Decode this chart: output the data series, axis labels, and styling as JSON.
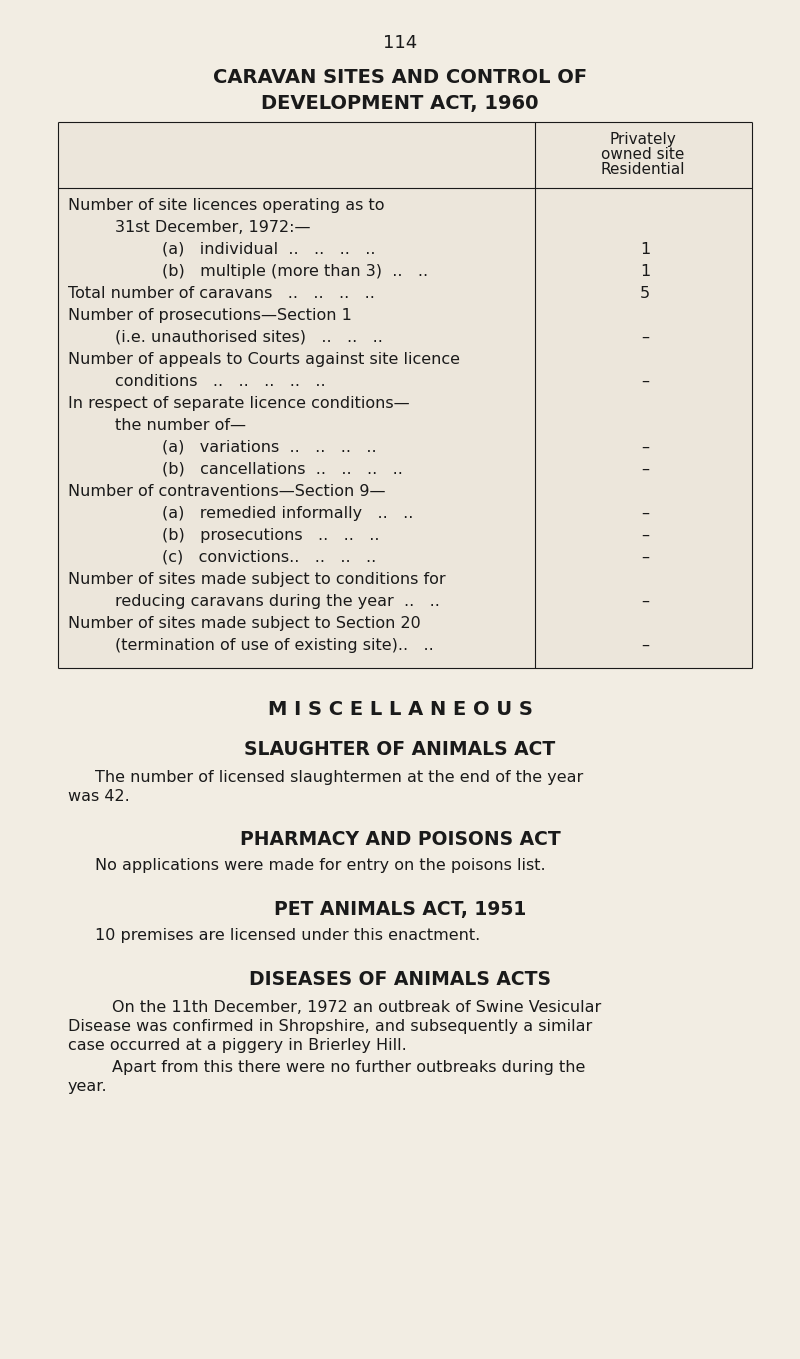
{
  "bg_color": "#f2ede3",
  "text_color": "#1a1a1a",
  "page_number": "114",
  "title_line1": "CARAVAN SITES AND CONTROL OF",
  "title_line2": "DEVELOPMENT ACT, 1960",
  "col_header_line1": "Privately",
  "col_header_line2": "owned site",
  "col_header_line3": "Residential",
  "table_rows": [
    {
      "indent": 0,
      "text": "Number of site licences operating as to",
      "value": "",
      "bold": false
    },
    {
      "indent": 1,
      "text": "31st December, 1972:—",
      "value": "",
      "bold": false
    },
    {
      "indent": 2,
      "text": "(a)   individual  ..   ..   ..   ..",
      "value": "1",
      "bold": false
    },
    {
      "indent": 2,
      "text": "(b)   multiple (more than 3)  ..   ..",
      "value": "1",
      "bold": false
    },
    {
      "indent": 0,
      "text": "Total number of caravans   ..   ..   ..   ..",
      "value": "5",
      "bold": false
    },
    {
      "indent": 0,
      "text": "Number of prosecutions—Section 1",
      "value": "",
      "bold": false
    },
    {
      "indent": 1,
      "text": "(i.e. unauthorised sites)   ..   ..   ..",
      "value": "–",
      "bold": false
    },
    {
      "indent": 0,
      "text": "Number of appeals to Courts against site licence",
      "value": "",
      "bold": false
    },
    {
      "indent": 1,
      "text": "conditions   ..   ..   ..   ..   ..",
      "value": "–",
      "bold": false
    },
    {
      "indent": 0,
      "text": "In respect of separate licence conditions—",
      "value": "",
      "bold": false
    },
    {
      "indent": 1,
      "text": "the number of—",
      "value": "",
      "bold": false
    },
    {
      "indent": 2,
      "text": "(a)   variations  ..   ..   ..   ..",
      "value": "–",
      "bold": false
    },
    {
      "indent": 2,
      "text": "(b)   cancellations  ..   ..   ..   ..",
      "value": "–",
      "bold": false
    },
    {
      "indent": 0,
      "text": "Number of contraventions—Section 9—",
      "value": "",
      "bold": false
    },
    {
      "indent": 2,
      "text": "(a)   remedied informally   ..   ..",
      "value": "–",
      "bold": false
    },
    {
      "indent": 2,
      "text": "(b)   prosecutions   ..   ..   ..",
      "value": "–",
      "bold": false
    },
    {
      "indent": 2,
      "text": "(c)   convictions..   ..   ..   ..",
      "value": "–",
      "bold": false
    },
    {
      "indent": 0,
      "text": "Number of sites made subject to conditions for",
      "value": "",
      "bold": false
    },
    {
      "indent": 1,
      "text": "reducing caravans during the year  ..   ..",
      "value": "–",
      "bold": false
    },
    {
      "indent": 0,
      "text": "Number of sites made subject to Section 20",
      "value": "",
      "bold": false
    },
    {
      "indent": 1,
      "text": "(termination of use of existing site)..   ..",
      "value": "–",
      "bold": false
    }
  ],
  "misc_title": "M I S C E L L A N E O U S",
  "slaughter_title": "SLAUGHTER OF ANIMALS ACT",
  "slaughter_body1": "The number of licensed slaughtermen at the end of the year",
  "slaughter_body2": "was 42.",
  "pharmacy_title": "PHARMACY AND POISONS ACT",
  "pharmacy_body": "No applications were made for entry on the poisons list.",
  "pet_title": "PET ANIMALS ACT, 1951",
  "pet_body": "10 premises are licensed under this enactment.",
  "diseases_title": "DISEASES OF ANIMALS ACTS",
  "diseases_body1": "On the 11th December, 1972 an outbreak of Swine Vesicular",
  "diseases_body2": "Disease was confirmed in Shropshire, and subsequently a similar",
  "diseases_body3": "case occurred at a piggery in Brierley Hill.",
  "diseases_body4": "Apart from this there were no further outbreaks during the",
  "diseases_body5": "year."
}
